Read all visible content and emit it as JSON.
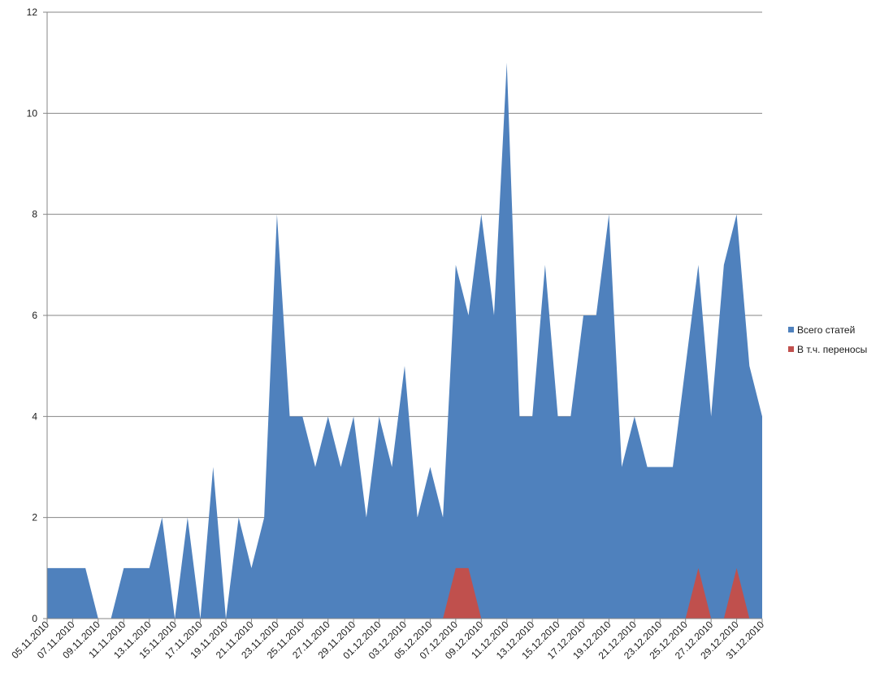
{
  "chart_data": {
    "type": "area",
    "x": [
      "05.11.2010",
      "06.11.2010",
      "07.11.2010",
      "08.11.2010",
      "09.11.2010",
      "10.11.2010",
      "11.11.2010",
      "12.11.2010",
      "13.11.2010",
      "14.11.2010",
      "15.11.2010",
      "16.11.2010",
      "17.11.2010",
      "18.11.2010",
      "19.11.2010",
      "20.11.2010",
      "21.11.2010",
      "22.11.2010",
      "23.11.2010",
      "24.11.2010",
      "25.11.2010",
      "26.11.2010",
      "27.11.2010",
      "28.11.2010",
      "29.11.2010",
      "30.11.2010",
      "01.12.2010",
      "02.12.2010",
      "03.12.2010",
      "04.12.2010",
      "05.12.2010",
      "06.12.2010",
      "07.12.2010",
      "08.12.2010",
      "09.12.2010",
      "10.12.2010",
      "11.12.2010",
      "12.12.2010",
      "13.12.2010",
      "14.12.2010",
      "15.12.2010",
      "16.12.2010",
      "17.12.2010",
      "18.12.2010",
      "19.12.2010",
      "20.12.2010",
      "21.12.2010",
      "22.12.2010",
      "23.12.2010",
      "24.12.2010",
      "25.12.2010",
      "26.12.2010",
      "27.12.2010",
      "28.12.2010",
      "29.12.2010",
      "30.12.2010",
      "31.12.2010"
    ],
    "tick_labels": [
      "05.11.2010",
      "07.11.2010",
      "09.11.2010",
      "11.11.2010",
      "13.11.2010",
      "15.11.2010",
      "17.11.2010",
      "19.11.2010",
      "21.11.2010",
      "23.11.2010",
      "25.11.2010",
      "27.11.2010",
      "29.11.2010",
      "01.12.2010",
      "03.12.2010",
      "05.12.2010",
      "07.12.2010",
      "09.12.2010",
      "11.12.2010",
      "13.12.2010",
      "15.12.2010",
      "17.12.2010",
      "19.12.2010",
      "21.12.2010",
      "23.12.2010",
      "25.12.2010",
      "27.12.2010",
      "29.12.2010",
      "31.12.2010"
    ],
    "series": [
      {
        "name": "Всего статей",
        "color": "#4f81bd",
        "values": [
          1,
          1,
          1,
          1,
          0,
          0,
          1,
          1,
          1,
          2,
          0,
          2,
          0,
          3,
          0,
          2,
          1,
          2,
          8,
          4,
          4,
          3,
          4,
          3,
          4,
          2,
          4,
          3,
          5,
          2,
          3,
          2,
          7,
          6,
          8,
          6,
          11,
          4,
          4,
          7,
          4,
          4,
          6,
          6,
          8,
          3,
          4,
          3,
          3,
          3,
          5,
          7,
          4,
          7,
          8,
          5,
          4
        ]
      },
      {
        "name": "В т.ч. переносы",
        "color": "#c0504d",
        "values": [
          0,
          0,
          0,
          0,
          0,
          0,
          0,
          0,
          0,
          0,
          0,
          0,
          0,
          0,
          0,
          0,
          0,
          0,
          0,
          0,
          0,
          0,
          0,
          0,
          0,
          0,
          0,
          0,
          0,
          0,
          0,
          0,
          1,
          1,
          0,
          0,
          0,
          0,
          0,
          0,
          0,
          0,
          0,
          0,
          0,
          0,
          0,
          0,
          0,
          0,
          0,
          1,
          0,
          0,
          1,
          0,
          0
        ]
      }
    ],
    "ylim": [
      0,
      12
    ],
    "yticks": [
      "0",
      "2",
      "4",
      "6",
      "8",
      "10",
      "12"
    ],
    "grid": true,
    "legend_position": "right",
    "title": "",
    "xlabel": "",
    "ylabel": ""
  }
}
